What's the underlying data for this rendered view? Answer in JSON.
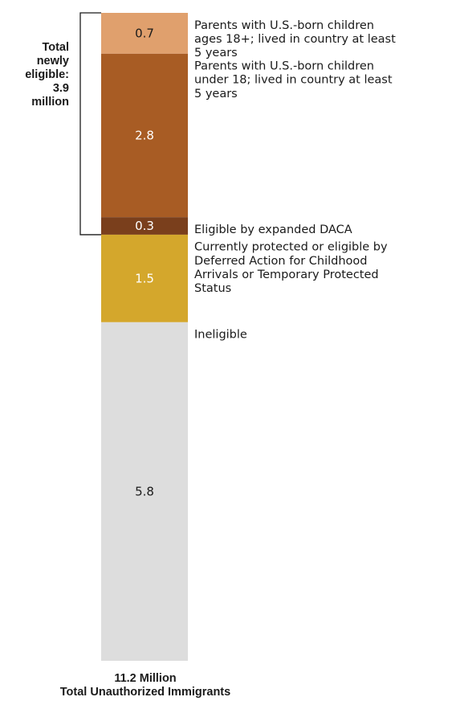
{
  "chart_data": {
    "type": "bar",
    "orientation": "stacked-vertical",
    "unit": "million",
    "total": 11.2,
    "segments": [
      {
        "value": 0.7,
        "value_label": "0.7",
        "label_lines": [
          "Parents with U.S.-born children",
          "ages 18+; lived in country at least",
          "5 years"
        ],
        "color": "#E0A06D",
        "text_color": "#1a1a1a"
      },
      {
        "value": 2.8,
        "value_label": "2.8",
        "label_lines": [
          "Parents with U.S.-born children",
          "under 18; lived in country at least",
          "5 years"
        ],
        "color": "#A85C24",
        "text_color": "#ffffff"
      },
      {
        "value": 0.3,
        "value_label": "0.3",
        "label_lines": [
          "Eligible by expanded DACA"
        ],
        "color": "#7A3F1C",
        "text_color": "#ffffff"
      },
      {
        "value": 1.5,
        "value_label": "1.5",
        "label_lines": [
          "Currently protected or eligible by",
          "Deferred Action for Childhood",
          "Arrivals or Temporary Protected",
          "Status"
        ],
        "color": "#D4A72C",
        "text_color": "#ffffff"
      },
      {
        "value": 5.8,
        "value_label": "5.8",
        "label_lines": [
          "Ineligible"
        ],
        "color": "#DDDDDD",
        "text_color": "#1a1a1a"
      }
    ],
    "bracket": {
      "label_lines": [
        "Total",
        "newly",
        "eligible:",
        "3.9",
        "million"
      ],
      "covers_segments": [
        0,
        1,
        2
      ]
    },
    "total_label_lines": [
      "11.2 Million",
      "Total Unauthorized Immigrants"
    ]
  }
}
